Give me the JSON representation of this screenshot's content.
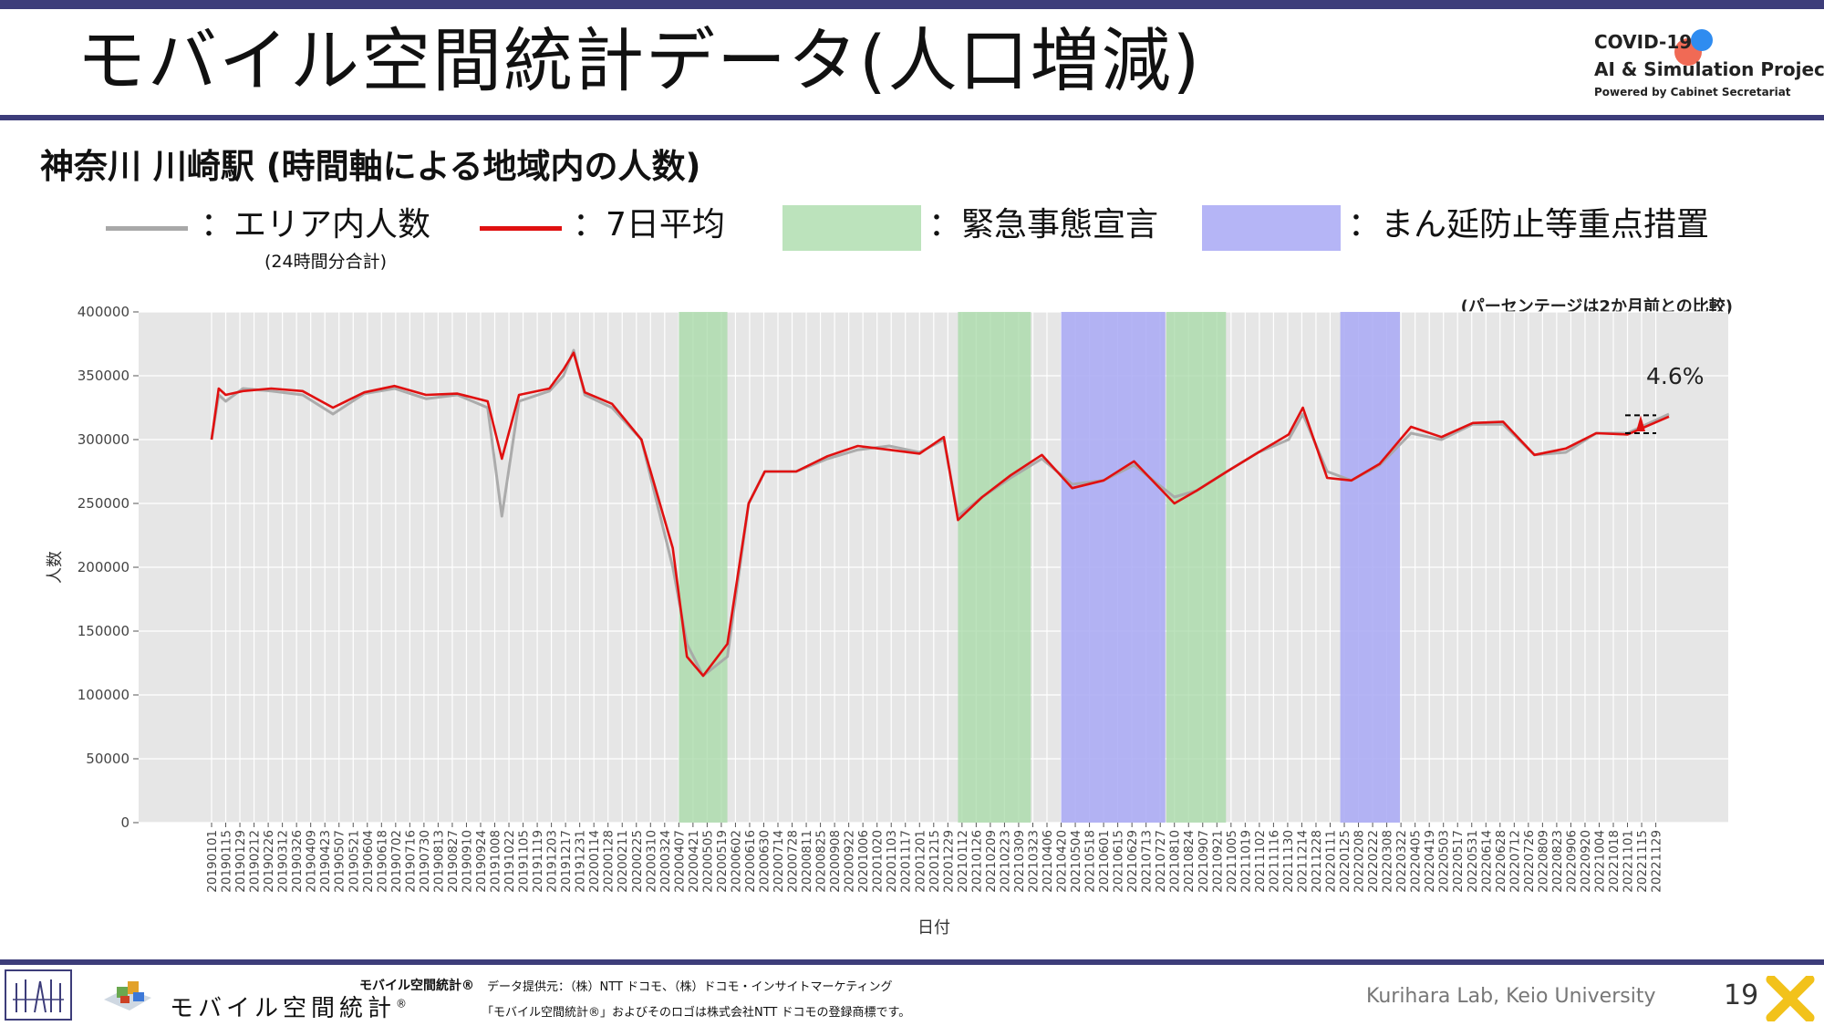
{
  "header": {
    "title": "モバイル空間統計データ(人口増減)",
    "logo_line1": "COVID-19",
    "logo_line2": "AI & Simulation Project",
    "logo_line3": "Powered by Cabinet Secretariat"
  },
  "subtitle": "神奈川 川崎駅 (時間軸による地域内の人数)",
  "legend": {
    "area_label": "：エリア内人数",
    "area_sub": "(24時間分合計)",
    "avg_label": "：7日平均",
    "emergency_label": "：緊急事態宣言",
    "quasi_label": "：まん延防止等重点措置"
  },
  "colors": {
    "area_series": "#a8a8a8",
    "avg_series": "#e01010",
    "emergency": "#a6d9a6",
    "quasi": "#a8a8f4",
    "plot_bg": "#e6e6e6",
    "accent": "#3d3d7a"
  },
  "note": "(パーセンテージは2か月前との比較)",
  "chart_data": {
    "type": "line",
    "title": "",
    "xlabel": "日付",
    "ylabel": "人数",
    "ylim": [
      0,
      400000
    ],
    "yticks": [
      0,
      50000,
      100000,
      150000,
      200000,
      250000,
      300000,
      350000,
      400000
    ],
    "ytick_labels": [
      "0",
      "50000",
      "100000",
      "150000",
      "200000",
      "250000",
      "300000",
      "350000",
      "400000"
    ],
    "x_range": [
      "20190101",
      "20221212"
    ],
    "xtick_labels": [
      "20190101",
      "20190115",
      "20190129",
      "20190212",
      "20190226",
      "20190312",
      "20190326",
      "20190409",
      "20190423",
      "20190507",
      "20190521",
      "20190604",
      "20190618",
      "20190702",
      "20190716",
      "20190730",
      "20190813",
      "20190827",
      "20190910",
      "20190924",
      "20191008",
      "20191022",
      "20191105",
      "20191119",
      "20191203",
      "20191217",
      "20191231",
      "20200114",
      "20200128",
      "20200211",
      "20200225",
      "20200310",
      "20200324",
      "20200407",
      "20200421",
      "20200505",
      "20200519",
      "20200602",
      "20200616",
      "20200630",
      "20200714",
      "20200728",
      "20200811",
      "20200825",
      "20200908",
      "20200922",
      "20201006",
      "20201020",
      "20201103",
      "20201117",
      "20201201",
      "20201215",
      "20201229",
      "20210112",
      "20210126",
      "20210209",
      "20210223",
      "20210309",
      "20210323",
      "20210406",
      "20210420",
      "20210504",
      "20210518",
      "20210601",
      "20210615",
      "20210629",
      "20210713",
      "20210727",
      "20210810",
      "20210824",
      "20210907",
      "20210921",
      "20211005",
      "20211019",
      "20211102",
      "20211116",
      "20211130",
      "20211214",
      "20211228",
      "20220111",
      "20220125",
      "20220208",
      "20220222",
      "20220308",
      "20220322",
      "20220405",
      "20220419",
      "20220503",
      "20220517",
      "20220531",
      "20220614",
      "20220628",
      "20220712",
      "20220726",
      "20220809",
      "20220823",
      "20220906",
      "20220920",
      "20221004",
      "20221018",
      "20221101",
      "20221115",
      "20221129"
    ],
    "grid": true,
    "shaded_periods": [
      {
        "type": "emergency",
        "start": "20200407",
        "end": "20200525"
      },
      {
        "type": "emergency",
        "start": "20210108",
        "end": "20210321"
      },
      {
        "type": "quasi",
        "start": "20210420",
        "end": "20210801"
      },
      {
        "type": "emergency",
        "start": "20210802",
        "end": "20210930"
      },
      {
        "type": "quasi",
        "start": "20220121",
        "end": "20220321"
      }
    ],
    "series": [
      {
        "key": "area",
        "x": [
          "20190101",
          "20190108",
          "20190115",
          "20190201",
          "20190301",
          "20190401",
          "20190501",
          "20190601",
          "20190701",
          "20190801",
          "20190901",
          "20191001",
          "20191015",
          "20191101",
          "20191201",
          "20191215",
          "20191225",
          "20200105",
          "20200201",
          "20200301",
          "20200401",
          "20200415",
          "20200501",
          "20200525",
          "20200615",
          "20200701",
          "20200801",
          "20200901",
          "20201001",
          "20201101",
          "20201201",
          "20201225",
          "20210108",
          "20210201",
          "20210301",
          "20210401",
          "20210501",
          "20210601",
          "20210701",
          "20210810",
          "20210901",
          "20211001",
          "20211101",
          "20211201",
          "20211215",
          "20220108",
          "20220201",
          "20220301",
          "20220401",
          "20220501",
          "20220601",
          "20220701",
          "20220801",
          "20220901",
          "20221001",
          "20221101",
          "20221212"
        ],
        "values": [
          300000,
          335000,
          330000,
          340000,
          338000,
          335000,
          320000,
          336000,
          340000,
          332000,
          335000,
          325000,
          240000,
          330000,
          338000,
          350000,
          370000,
          335000,
          325000,
          300000,
          200000,
          140000,
          115000,
          130000,
          250000,
          275000,
          275000,
          285000,
          292000,
          295000,
          290000,
          300000,
          240000,
          255000,
          270000,
          285000,
          265000,
          268000,
          280000,
          255000,
          260000,
          275000,
          290000,
          300000,
          320000,
          275000,
          268000,
          280000,
          305000,
          300000,
          312000,
          312000,
          288000,
          290000,
          305000,
          305000,
          320000
        ]
      },
      {
        "key": "avg",
        "x": [
          "20190101",
          "20190108",
          "20190115",
          "20190201",
          "20190301",
          "20190401",
          "20190501",
          "20190601",
          "20190701",
          "20190801",
          "20190901",
          "20191001",
          "20191015",
          "20191101",
          "20191201",
          "20191215",
          "20191225",
          "20200105",
          "20200201",
          "20200301",
          "20200401",
          "20200415",
          "20200501",
          "20200525",
          "20200615",
          "20200701",
          "20200801",
          "20200901",
          "20201001",
          "20201101",
          "20201201",
          "20201225",
          "20210108",
          "20210201",
          "20210301",
          "20210401",
          "20210501",
          "20210601",
          "20210701",
          "20210810",
          "20210901",
          "20211001",
          "20211101",
          "20211201",
          "20211215",
          "20220108",
          "20220201",
          "20220301",
          "20220401",
          "20220501",
          "20220601",
          "20220701",
          "20220801",
          "20220901",
          "20221001",
          "20221101",
          "20221212"
        ],
        "values": [
          300000,
          340000,
          335000,
          338000,
          340000,
          338000,
          325000,
          337000,
          342000,
          335000,
          336000,
          330000,
          285000,
          335000,
          340000,
          355000,
          368000,
          337000,
          328000,
          300000,
          215000,
          130000,
          115000,
          140000,
          250000,
          275000,
          275000,
          287000,
          295000,
          292000,
          289000,
          302000,
          237000,
          255000,
          272000,
          288000,
          262000,
          268000,
          283000,
          250000,
          260000,
          275000,
          290000,
          304000,
          325000,
          270000,
          268000,
          281000,
          310000,
          302000,
          313000,
          314000,
          288000,
          293000,
          305000,
          304000,
          318000
        ]
      }
    ],
    "annotation": {
      "label": "4.6%",
      "ref_value": 305000,
      "current_value": 319000
    }
  },
  "footer": {
    "brand": "モバイル空間統計",
    "brand_mark": "®",
    "product_label": "モバイル空間統計®",
    "provider": "データ提供元：（株）NTT ドコモ、（株）ドコモ・インサイトマーケティング",
    "trademark": "「モバイル空間統計®」およびそのロゴは株式会社NTT ドコモの登録商標です。",
    "lab": "Kurihara Lab, Keio University",
    "page": "19"
  }
}
